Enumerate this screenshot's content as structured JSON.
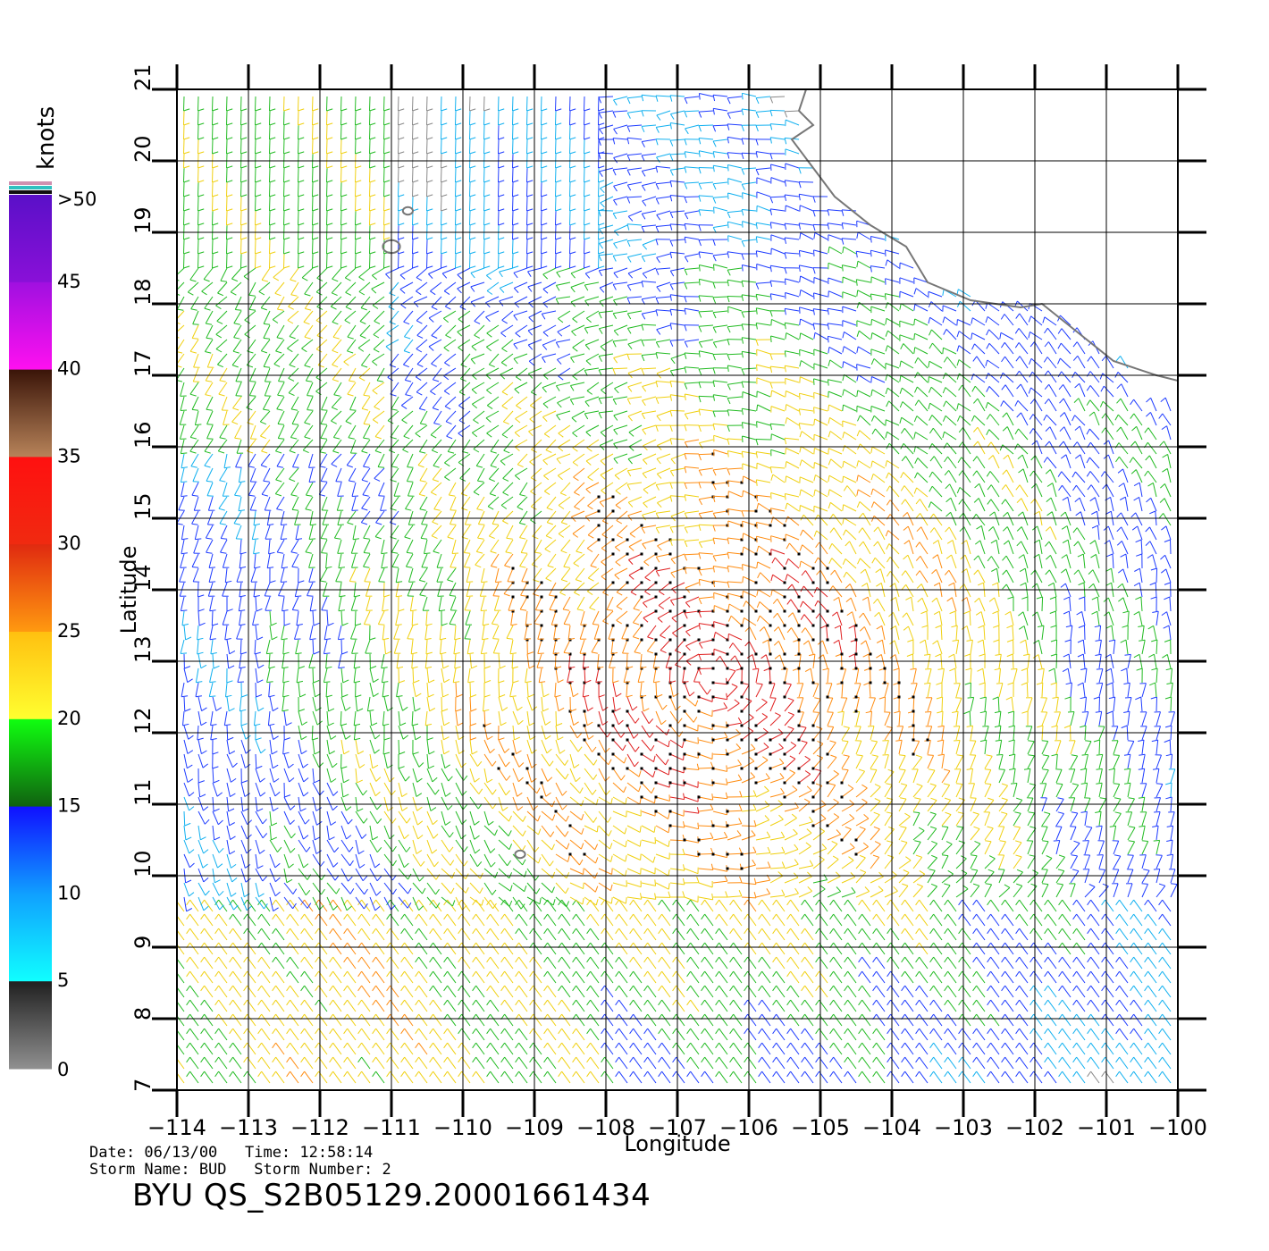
{
  "chart_data": {
    "type": "wind-barb-map",
    "xlabel": "Longitude",
    "ylabel": "Latitude",
    "xlim": [
      -114,
      -100
    ],
    "ylim": [
      7,
      21
    ],
    "xticks": [
      -114,
      -113,
      -112,
      -111,
      -110,
      -109,
      -108,
      -107,
      -106,
      -105,
      -104,
      -103,
      -102,
      -101,
      -100
    ],
    "xtick_labels": [
      "−114",
      "−113",
      "−112",
      "−111",
      "−110",
      "−109",
      "−108",
      "−107",
      "−106",
      "−105",
      "−104",
      "−103",
      "−102",
      "−101",
      "−100"
    ],
    "yticks": [
      7,
      8,
      9,
      10,
      11,
      12,
      13,
      14,
      15,
      16,
      17,
      18,
      19,
      20,
      21
    ],
    "ytick_labels": [
      "7",
      "8",
      "9",
      "10",
      "11",
      "12",
      "13",
      "14",
      "15",
      "16",
      "17",
      "18",
      "19",
      "20",
      "21"
    ],
    "grid": true,
    "coastline": [
      [
        -105.2,
        21.0
      ],
      [
        -105.3,
        20.7
      ],
      [
        -105.1,
        20.5
      ],
      [
        -105.4,
        20.3
      ],
      [
        -105.1,
        19.9
      ],
      [
        -104.8,
        19.5
      ],
      [
        -104.3,
        19.1
      ],
      [
        -103.8,
        18.8
      ],
      [
        -103.5,
        18.3
      ],
      [
        -102.9,
        18.05
      ],
      [
        -102.2,
        17.95
      ],
      [
        -101.9,
        18.0
      ],
      [
        -101.4,
        17.6
      ],
      [
        -100.9,
        17.2
      ],
      [
        -100.3,
        17.0
      ],
      [
        -99.9,
        16.9
      ]
    ],
    "islands": [
      [
        -111.0,
        18.8,
        0.12
      ],
      [
        -110.77,
        19.3,
        0.07
      ],
      [
        -109.2,
        10.3,
        0.07
      ]
    ],
    "colorbar": {
      "title": "knots",
      "labels": [
        ">50",
        "45",
        "40",
        "35",
        "30",
        "25",
        "20",
        "15",
        "10",
        "5",
        "0"
      ],
      "bands": [
        {
          "from": 45,
          "to": 50,
          "top": "#5a10c8",
          "bottom": "#8a10d8"
        },
        {
          "from": 40,
          "to": 45,
          "top": "#a010e0",
          "bottom": "#ff10f0"
        },
        {
          "from": 35,
          "to": 40,
          "top": "#3a1408",
          "bottom": "#b8845a"
        },
        {
          "from": 30,
          "to": 35,
          "top": "#ff1010",
          "bottom": "#f02a10"
        },
        {
          "from": 25,
          "to": 30,
          "top": "#e02a10",
          "bottom": "#ff9a10"
        },
        {
          "from": 20,
          "to": 25,
          "top": "#ffc010",
          "bottom": "#ffff30"
        },
        {
          "from": 15,
          "to": 20,
          "top": "#10ff10",
          "bottom": "#106010"
        },
        {
          "from": 10,
          "to": 15,
          "top": "#1010ff",
          "bottom": "#10a0ff"
        },
        {
          "from": 5,
          "to": 10,
          "top": "#10a0ff",
          "bottom": "#10ffff"
        },
        {
          "from": 0,
          "to": 5,
          "top": "#202020",
          "bottom": "#909090"
        }
      ],
      "cap_colors": [
        "#d090b0",
        "#30c0c0",
        "#101010"
      ]
    },
    "barb_colors": {
      "slow_blue": "#1e3cff",
      "cyan": "#10b0f0",
      "green": "#22bb22",
      "yellow": "#f0d010",
      "orange": "#ff8c10",
      "red": "#e02020",
      "purple": "#9020e0",
      "grey": "#888888",
      "black": "#000000"
    }
  },
  "footer": {
    "line1": "Date: 06/13/00   Time: 12:58:14",
    "line2": "Storm Name: BUD   Storm Number: 2",
    "title": "BYU QS_S2B05129.20001661434"
  }
}
